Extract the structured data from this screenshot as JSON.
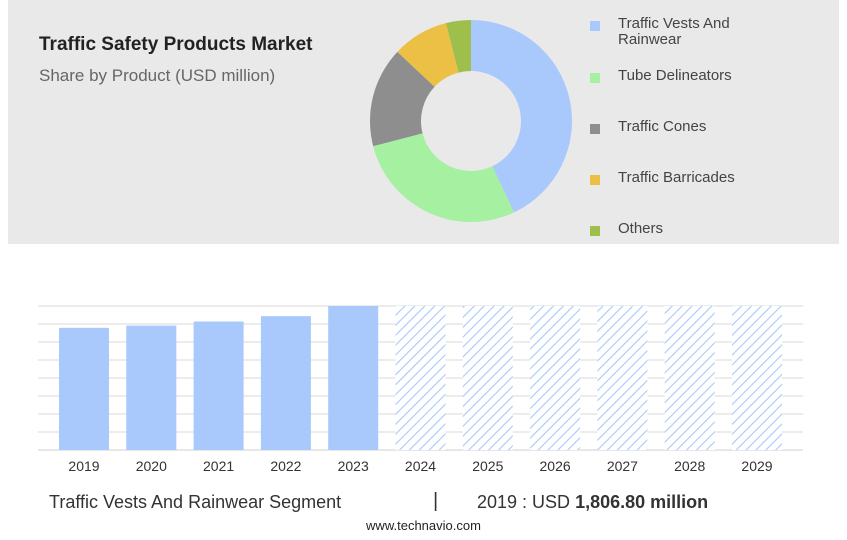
{
  "header": {
    "title": "Traffic Safety Products Market",
    "subtitle": "Share by Product (USD million)"
  },
  "legend": [
    {
      "label": "Traffic Vests And Rainwear",
      "color": "#a9c8fb"
    },
    {
      "label": "Tube Delineators",
      "color": "#a6f0a2"
    },
    {
      "label": "Traffic Cones",
      "color": "#8e8e8e"
    },
    {
      "label": "Traffic Barricades",
      "color": "#ecc044"
    },
    {
      "label": "Others",
      "color": "#9fbf4d"
    }
  ],
  "footer": {
    "segment": "Traffic Vests And Rainwear Segment",
    "separator": "|",
    "value_prefix": "2019 : USD ",
    "value_bold": "1,806.80 million",
    "site": "www.technavio.com"
  },
  "chart_data": [
    {
      "type": "pie",
      "subtype": "donut",
      "labels": [
        "Traffic Vests And Rainwear",
        "Tube Delineators",
        "Traffic Cones",
        "Traffic Barricades",
        "Others"
      ],
      "values": [
        43,
        28,
        16,
        9,
        4
      ],
      "colors": [
        "#a9c8fb",
        "#a6f0a2",
        "#8e8e8e",
        "#ecc044",
        "#9fbf4d"
      ],
      "legend_position": "right"
    },
    {
      "type": "bar",
      "categories": [
        "2019",
        "2020",
        "2021",
        "2022",
        "2023",
        "2024",
        "2025",
        "2026",
        "2027",
        "2028",
        "2029"
      ],
      "values": [
        1806.8,
        1840,
        1900,
        1980,
        2130,
        null,
        null,
        null,
        null,
        null,
        null
      ],
      "forecast_categories": [
        "2024",
        "2025",
        "2026",
        "2027",
        "2028",
        "2029"
      ],
      "bar_color": "#a9c8fb",
      "ylim": [
        0,
        2130
      ],
      "grid": true
    }
  ]
}
